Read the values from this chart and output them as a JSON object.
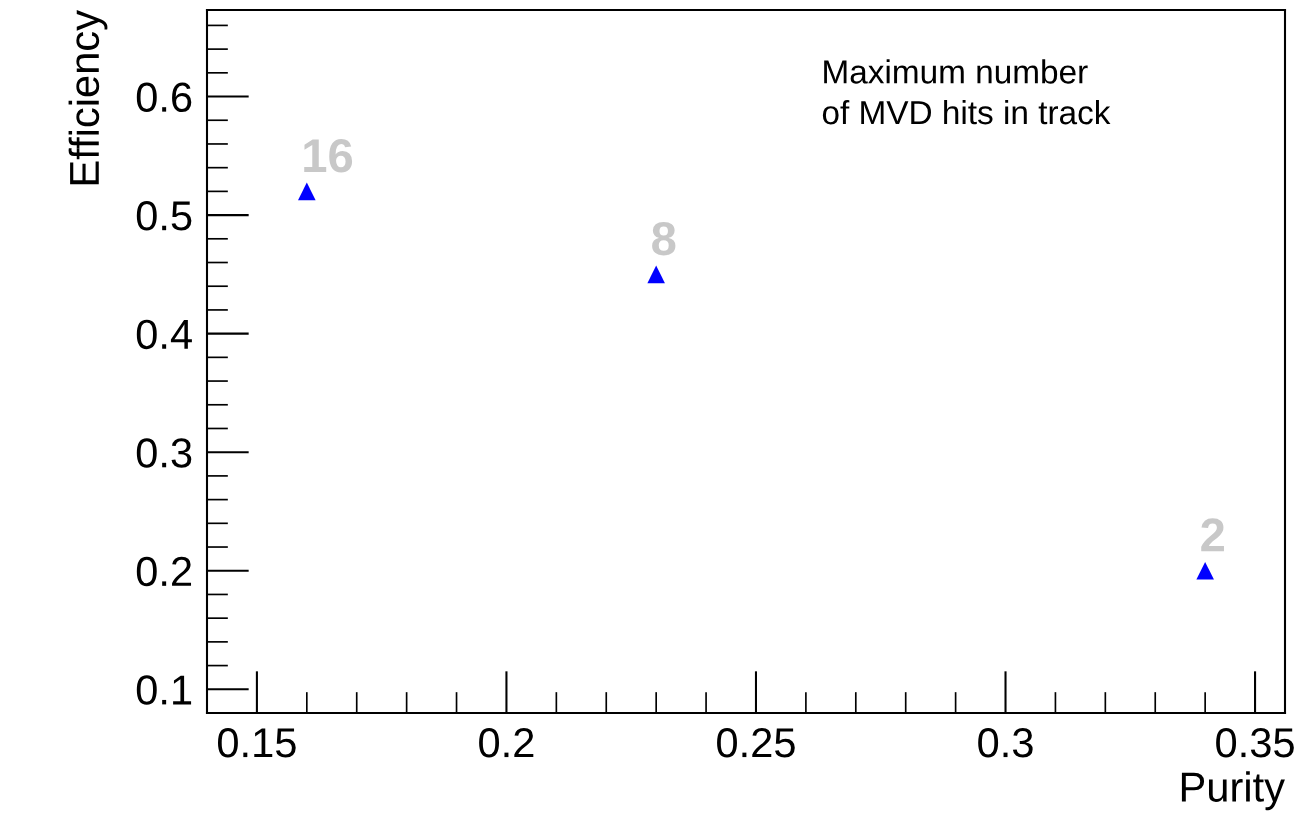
{
  "chart_data": {
    "type": "scatter",
    "xlabel": "Purity",
    "ylabel": "Efficiency",
    "x": [
      0.16,
      0.23,
      0.34
    ],
    "series": [
      {
        "color": "#0000ff",
        "values": [
          0.52,
          0.45,
          0.2
        ]
      }
    ],
    "marker": "triangle",
    "xlim": [
      0.14,
      0.356
    ],
    "ylim": [
      0.08,
      0.673
    ],
    "xticks": [
      0.15,
      0.2,
      0.25,
      0.3,
      0.35
    ],
    "yticks": [
      0.1,
      0.2,
      0.3,
      0.4,
      0.5,
      0.6
    ],
    "annotations": [
      {
        "text": "16",
        "x": 0.16,
        "y": 0.52
      },
      {
        "text": "8",
        "x": 0.23,
        "y": 0.45
      },
      {
        "text": "2",
        "x": 0.34,
        "y": 0.2
      },
      "Maximum number\nof MVD hits in track"
    ]
  }
}
